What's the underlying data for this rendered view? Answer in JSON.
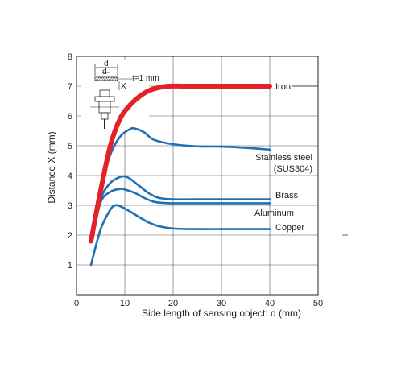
{
  "chart_data": {
    "type": "line",
    "xlabel": "Side length of sensing object: d (mm)",
    "ylabel": "Distance X (mm)",
    "xlim": [
      0,
      50
    ],
    "ylim": [
      0,
      8
    ],
    "xticks": [
      0,
      10,
      20,
      30,
      40,
      50
    ],
    "yticks": [
      1,
      2,
      3,
      4,
      5,
      6,
      7,
      8
    ],
    "grid": true,
    "inset_labels": {
      "d": "d",
      "t": "t=1 mm",
      "x": "X"
    },
    "series": [
      {
        "name": "Iron",
        "color": "#e32228",
        "x": [
          3,
          5,
          7,
          9,
          11,
          13,
          15,
          17,
          19,
          22,
          25,
          30,
          35,
          40
        ],
        "y": [
          1.8,
          3.5,
          5.0,
          5.9,
          6.35,
          6.65,
          6.85,
          6.95,
          7.0,
          7.0,
          7.0,
          7.0,
          7.0,
          7.0
        ]
      },
      {
        "name": "Stainless steel\n(SUS304)",
        "color": "#1f6fb4",
        "x": [
          3,
          5,
          7,
          9,
          11,
          12,
          14,
          16,
          20,
          25,
          30,
          35,
          40
        ],
        "y": [
          1.9,
          3.5,
          4.7,
          5.3,
          5.55,
          5.58,
          5.45,
          5.2,
          5.05,
          4.98,
          4.97,
          4.93,
          4.87
        ]
      },
      {
        "name": "Brass",
        "color": "#1f6fb4",
        "x": [
          3,
          5,
          7,
          9,
          10,
          11,
          13,
          15,
          17,
          20,
          25,
          30,
          35,
          40
        ],
        "y": [
          1.8,
          3.2,
          3.75,
          3.95,
          3.97,
          3.9,
          3.65,
          3.4,
          3.25,
          3.2,
          3.2,
          3.2,
          3.2,
          3.2
        ]
      },
      {
        "name": "Aluminum",
        "color": "#1f6fb4",
        "x": [
          3,
          5,
          7,
          9,
          10,
          12,
          14,
          16,
          18,
          20,
          25,
          30,
          35,
          40
        ],
        "y": [
          1.8,
          3.1,
          3.45,
          3.55,
          3.53,
          3.42,
          3.25,
          3.12,
          3.08,
          3.07,
          3.07,
          3.07,
          3.07,
          3.07
        ]
      },
      {
        "name": "Copper",
        "color": "#1f6fb4",
        "x": [
          3,
          5,
          7,
          8,
          9,
          11,
          13,
          15,
          17,
          20,
          25,
          30,
          35,
          40
        ],
        "y": [
          1.0,
          2.2,
          2.85,
          3.0,
          2.97,
          2.8,
          2.6,
          2.42,
          2.3,
          2.22,
          2.2,
          2.2,
          2.2,
          2.2
        ]
      }
    ]
  }
}
